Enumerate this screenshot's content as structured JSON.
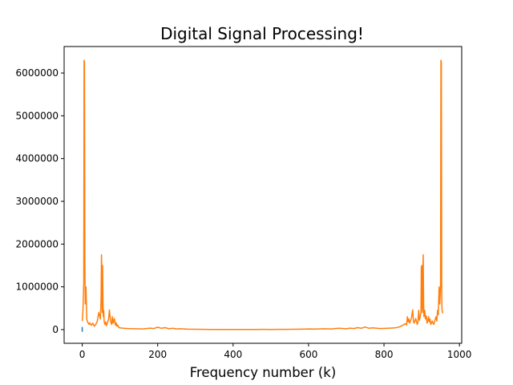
{
  "chart_data": {
    "type": "line",
    "title": "Digital Signal Processing!",
    "xlabel": "Frequency number (k)",
    "ylabel": "",
    "xlim": [
      -48,
      1006
    ],
    "ylim": [
      -320000,
      6620000
    ],
    "x_ticks": [
      0,
      200,
      400,
      600,
      800,
      1000
    ],
    "x_tick_labels": [
      "0",
      "200",
      "400",
      "600",
      "800",
      "1000"
    ],
    "y_ticks": [
      0,
      1000000,
      2000000,
      3000000,
      4000000,
      5000000,
      6000000
    ],
    "y_tick_labels": [
      "0",
      "1000000",
      "2000000",
      "3000000",
      "4000000",
      "5000000",
      "6000000"
    ],
    "grid": false,
    "legend": "none",
    "series": [
      {
        "color": "#1f77b4",
        "x": [
          0,
          0
        ],
        "y": [
          -50000,
          60000
        ]
      },
      {
        "color": "#ff7f0e",
        "x": [
          0,
          2,
          4,
          5,
          6,
          7,
          8,
          10,
          12,
          14,
          16,
          18,
          20,
          24,
          28,
          32,
          36,
          40,
          44,
          48,
          50,
          51,
          52,
          53,
          54,
          55,
          56,
          57,
          58,
          60,
          62,
          64,
          66,
          70,
          72,
          75,
          78,
          80,
          82,
          85,
          88,
          90,
          92,
          94,
          96,
          100,
          110,
          120,
          140,
          160,
          180,
          190,
          200,
          210,
          220,
          230,
          240,
          250,
          260,
          280,
          300,
          320,
          340,
          360,
          380,
          400,
          420,
          440,
          460,
          478,
          500,
          520,
          540,
          560,
          580,
          600,
          620,
          640,
          660,
          680,
          700,
          710,
          720,
          730,
          740,
          750,
          760,
          770,
          790,
          810,
          830,
          840,
          850,
          856,
          860,
          862,
          864,
          866,
          868,
          870,
          873,
          876,
          878,
          880,
          884,
          888,
          890,
          892,
          894,
          896,
          898,
          899,
          900,
          901,
          902,
          903,
          904,
          905,
          906,
          908,
          910,
          912,
          914,
          916,
          918,
          920,
          922,
          924,
          926,
          928,
          930,
          932,
          934,
          936,
          938,
          940,
          942,
          944,
          946,
          948,
          950,
          951,
          952,
          953,
          954,
          956
        ],
        "y": [
          200000,
          450000,
          1100000,
          6300000,
          6250000,
          1500000,
          600000,
          1000000,
          250000,
          180000,
          150000,
          120000,
          160000,
          100000,
          150000,
          80000,
          120000,
          200000,
          400000,
          250000,
          700000,
          1750000,
          1200000,
          400000,
          1500000,
          600000,
          300000,
          450000,
          200000,
          120000,
          180000,
          90000,
          140000,
          250000,
          460000,
          200000,
          120000,
          300000,
          150000,
          260000,
          100000,
          160000,
          80000,
          110000,
          60000,
          40000,
          30000,
          25000,
          20000,
          15000,
          35000,
          25000,
          55000,
          30000,
          45000,
          20000,
          30000,
          15000,
          20000,
          10000,
          8000,
          6000,
          5000,
          4000,
          4000,
          3000,
          4000,
          4000,
          5000,
          6000,
          5000,
          6000,
          7000,
          8000,
          10000,
          15000,
          12000,
          20000,
          15000,
          30000,
          20000,
          35000,
          25000,
          45000,
          30000,
          60000,
          30000,
          40000,
          25000,
          30000,
          40000,
          60000,
          100000,
          140000,
          110000,
          300000,
          180000,
          250000,
          150000,
          200000,
          280000,
          460000,
          200000,
          150000,
          260000,
          120000,
          180000,
          450000,
          220000,
          300000,
          400000,
          1450000,
          1500000,
          600000,
          400000,
          1300000,
          1750000,
          600000,
          300000,
          450000,
          250000,
          320000,
          150000,
          200000,
          300000,
          180000,
          250000,
          120000,
          160000,
          200000,
          150000,
          120000,
          180000,
          250000,
          300000,
          200000,
          450000,
          350000,
          1000000,
          600000,
          1000000,
          6300000,
          6250000,
          800000,
          450000,
          380000
        ]
      }
    ]
  }
}
